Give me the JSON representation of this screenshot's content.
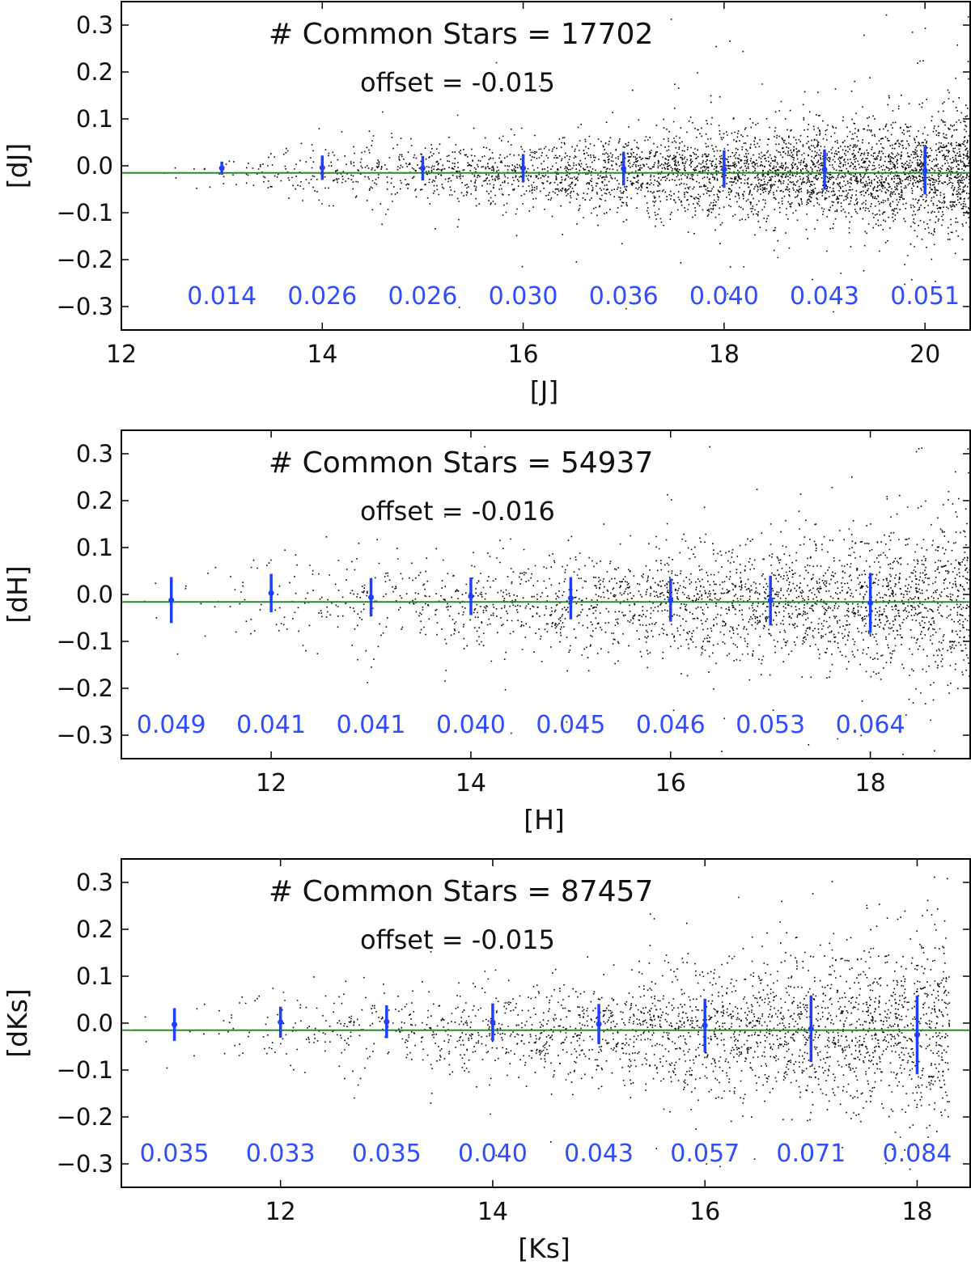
{
  "chart_data": [
    {
      "type": "scatter",
      "title": "",
      "annotation_count": "# Common Stars = 17702",
      "annotation_offset": "offset = -0.015",
      "offset": -0.015,
      "xlabel": "[J]",
      "ylabel": "[dJ]",
      "xlim": [
        12,
        20.45
      ],
      "ylim": [
        -0.35,
        0.35
      ],
      "xticks": [
        12,
        14,
        16,
        18,
        20
      ],
      "yticks": [
        0.3,
        0.2,
        0.1,
        0.0,
        -0.1,
        -0.2,
        -0.3
      ],
      "ytick_labels": [
        "0.3",
        "0.2",
        "0.1",
        "0.0",
        "−0.1",
        "−0.2",
        "−0.3"
      ],
      "bins": {
        "x": [
          13,
          14,
          15,
          16,
          17,
          18,
          19,
          20
        ],
        "mean": [
          -0.005,
          -0.004,
          -0.005,
          -0.005,
          -0.006,
          -0.007,
          -0.008,
          -0.01
        ],
        "sigma": [
          0.014,
          0.026,
          0.026,
          0.03,
          0.036,
          0.04,
          0.043,
          0.051
        ],
        "labels": [
          "0.014",
          "0.026",
          "0.026",
          "0.030",
          "0.036",
          "0.040",
          "0.043",
          "0.051"
        ]
      },
      "scatter_profile": {
        "x_start": 12.3,
        "x_end": 20.45,
        "density_growth": "increasing with magnitude"
      }
    },
    {
      "type": "scatter",
      "title": "",
      "annotation_count": "# Common Stars = 54937",
      "annotation_offset": "offset = -0.016",
      "offset": -0.016,
      "xlabel": "[H]",
      "ylabel": "[dH]",
      "xlim": [
        10.5,
        19.0
      ],
      "ylim": [
        -0.35,
        0.35
      ],
      "xticks": [
        12,
        14,
        16,
        18
      ],
      "yticks": [
        0.3,
        0.2,
        0.1,
        0.0,
        -0.1,
        -0.2,
        -0.3
      ],
      "ytick_labels": [
        "0.3",
        "0.2",
        "0.1",
        "0.0",
        "−0.1",
        "−0.2",
        "−0.3"
      ],
      "bins": {
        "x": [
          11,
          12,
          13,
          14,
          15,
          16,
          17,
          18
        ],
        "mean": [
          -0.012,
          0.003,
          -0.006,
          -0.004,
          -0.008,
          -0.012,
          -0.013,
          -0.018
        ],
        "sigma": [
          0.049,
          0.041,
          0.041,
          0.04,
          0.045,
          0.046,
          0.053,
          0.064
        ],
        "labels": [
          "0.049",
          "0.041",
          "0.041",
          "0.040",
          "0.045",
          "0.046",
          "0.053",
          "0.064"
        ]
      },
      "scatter_profile": {
        "x_start": 10.6,
        "x_end": 19.0,
        "density_growth": "increasing with magnitude"
      }
    },
    {
      "type": "scatter",
      "title": "",
      "annotation_count": "# Common Stars = 87457",
      "annotation_offset": "offset = -0.015",
      "offset": -0.015,
      "xlabel": "[Ks]",
      "ylabel": "[dKs]",
      "xlim": [
        10.5,
        18.5
      ],
      "ylim": [
        -0.35,
        0.35
      ],
      "xticks": [
        12,
        14,
        16,
        18
      ],
      "yticks": [
        0.3,
        0.2,
        0.1,
        0.0,
        -0.1,
        -0.2,
        -0.3
      ],
      "ytick_labels": [
        "0.3",
        "0.2",
        "0.1",
        "0.0",
        "−0.1",
        "−0.2",
        "−0.3"
      ],
      "bins": {
        "x": [
          11,
          12,
          13,
          14,
          15,
          16,
          17,
          18
        ],
        "mean": [
          -0.003,
          0.002,
          0.003,
          0.002,
          -0.002,
          -0.005,
          -0.012,
          -0.025
        ],
        "sigma": [
          0.035,
          0.033,
          0.035,
          0.04,
          0.043,
          0.057,
          0.071,
          0.084
        ],
        "labels": [
          "0.035",
          "0.033",
          "0.035",
          "0.040",
          "0.043",
          "0.057",
          "0.071",
          "0.084"
        ]
      },
      "scatter_profile": {
        "x_start": 10.5,
        "x_end": 18.3,
        "density_growth": "increasing with magnitude"
      }
    }
  ],
  "colors": {
    "points": "#000000",
    "offset_line": "#2a8a2a",
    "error_bars": "#1f3fff",
    "sigma_labels": "#2f4dff",
    "axes": "#000000",
    "text": "#111111"
  }
}
